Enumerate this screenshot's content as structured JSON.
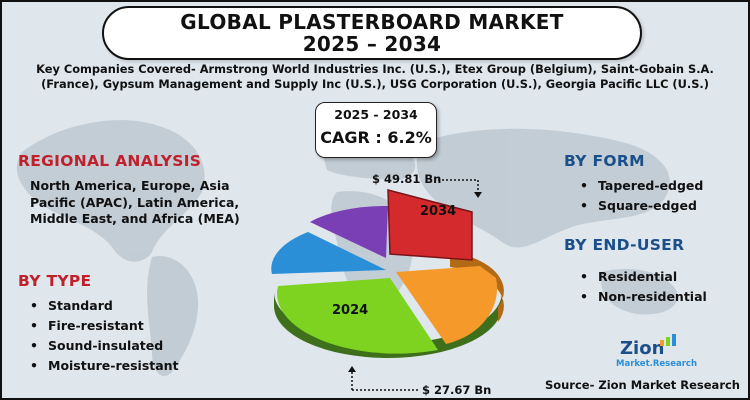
{
  "title": {
    "line1": "GLOBAL PLASTERBOARD MARKET",
    "line2": "2025 – 2034"
  },
  "companies": "Key Companies Covered- Armstrong World Industries Inc. (U.S.), Etex Group (Belgium), Saint-Gobain S.A. (France), Gypsum Management and Supply Inc (U.S.), USG Corporation (U.S.), Georgia Pacific LLC (U.S.)",
  "cagr": {
    "period": "2025 - 2034",
    "label": "CAGR : 6.2%"
  },
  "regional": {
    "heading": "REGIONAL ANALYSIS",
    "text": "North America, Europe, Asia Pacific (APAC), Latin America, Middle East, and Africa (MEA)"
  },
  "by_type": {
    "heading": "BY TYPE",
    "items": [
      "Standard",
      "Fire-resistant",
      "Sound-insulated",
      "Moisture-resistant"
    ]
  },
  "by_form": {
    "heading": "BY FORM",
    "items": [
      "Tapered-edged",
      "Square-edged"
    ]
  },
  "by_end_user": {
    "heading": "BY END-USER",
    "items": [
      "Residential",
      "Non-residential"
    ]
  },
  "pie": {
    "label_2024": "2024",
    "label_2034": "2034",
    "value_2034": "$ 49.81 Bn",
    "value_2024": "$ 27.67 Bn",
    "colors": {
      "red": "#d42a2e",
      "orange": "#f59a2a",
      "green": "#7ed321",
      "blue": "#2b8fd8",
      "purple": "#7b3fb5"
    }
  },
  "logo": {
    "name": "Zion",
    "sub": "Market.Research"
  },
  "source": "Source- Zion Market Research"
}
